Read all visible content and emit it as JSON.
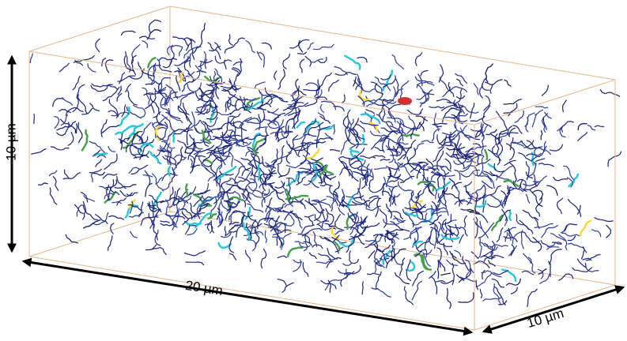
{
  "labels": {
    "height": "10 µm",
    "length": "20 µm",
    "depth": "10 µm"
  }
}
